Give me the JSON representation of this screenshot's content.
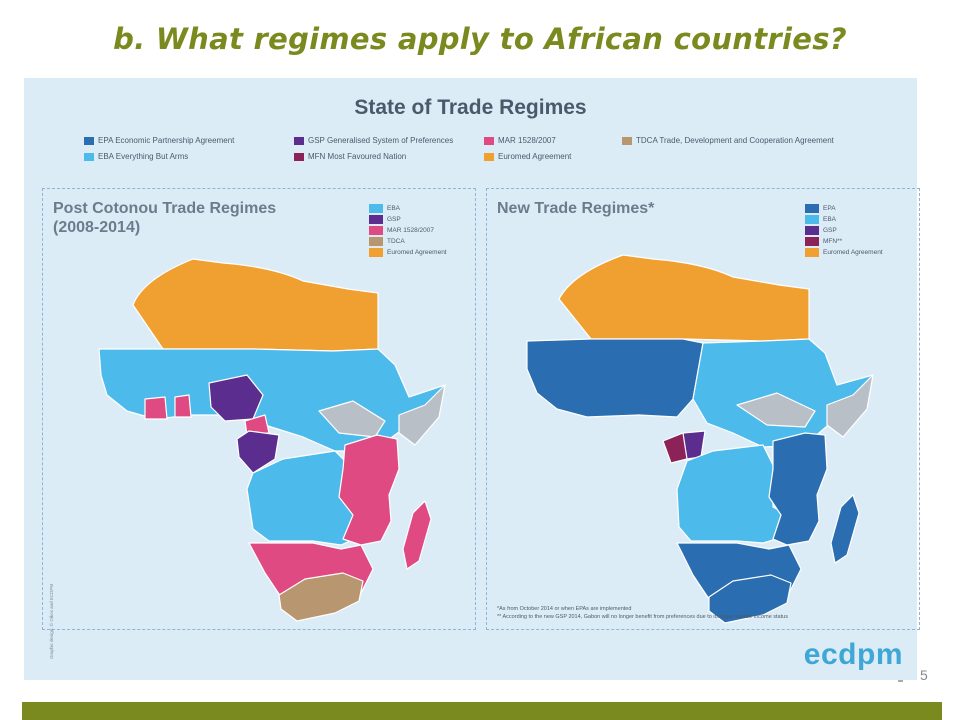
{
  "slide": {
    "title": "b. What regimes apply to African countries?",
    "page_number": "5"
  },
  "infographic": {
    "title": "State of Trade Regimes",
    "legend": [
      {
        "label": "EPA Economic Partnership Agreement",
        "color": "#2a6db0"
      },
      {
        "label": "EBA Everything But Arms",
        "color": "#4cbbec"
      },
      {
        "label": "GSP Generalised System of Preferences",
        "color": "#5b2d8e"
      },
      {
        "label": "MFN Most Favoured Nation",
        "color": "#8b2358"
      },
      {
        "label": "MAR 1528/2007",
        "color": "#e04a82"
      },
      {
        "label": "Euromed Agreement",
        "color": "#f0a030"
      },
      {
        "label": "TDCA Trade, Development and Cooperation Agreement",
        "color": "#b89670"
      }
    ],
    "brand": "ecdpm",
    "credit": "Graphic design: © Oikos and ECDPM"
  },
  "maps": {
    "left": {
      "title_line1": "Post Cotonou Trade Regimes",
      "title_line2": "(2008-2014)",
      "legend": [
        {
          "label": "EBA",
          "color": "#4cbbec"
        },
        {
          "label": "GSP",
          "color": "#5b2d8e"
        },
        {
          "label": "MAR 1528/2007",
          "color": "#e04a82"
        },
        {
          "label": "TDCA",
          "color": "#b89670"
        },
        {
          "label": "Euromed Agreement",
          "color": "#f0a030"
        }
      ]
    },
    "right": {
      "title": "New Trade Regimes*",
      "legend": [
        {
          "label": "EPA",
          "color": "#2a6db0"
        },
        {
          "label": "EBA",
          "color": "#4cbbec"
        },
        {
          "label": "GSP",
          "color": "#5b2d8e"
        },
        {
          "label": "MFN**",
          "color": "#8b2358"
        },
        {
          "label": "Euromed Agreement",
          "color": "#f0a030"
        }
      ],
      "footnote1": "*As from October 2014 or when EPAs are implemented",
      "footnote2": "** According to the new GSP 2014, Gabon will no longer benefit from preferences due to its upper-middle income status"
    }
  },
  "colors": {
    "title_green": "#7a8a1e",
    "panel_bg": "#dcecf7",
    "no_data": "#b8bfc6"
  }
}
